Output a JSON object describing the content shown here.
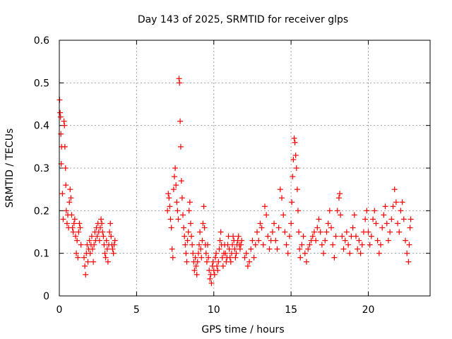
{
  "chart_data": {
    "type": "scatter",
    "title": "Day 143 of 2025, SRMTID for receiver glps",
    "xlabel": "GPS time / hours",
    "ylabel": "SRMTID / TECUs",
    "xlim": [
      0,
      24
    ],
    "ylim": [
      0,
      0.6
    ],
    "xticks": [
      0,
      5,
      10,
      15,
      20
    ],
    "yticks": [
      0,
      0.1,
      0.2,
      0.3,
      0.4,
      0.5,
      0.6
    ],
    "xtick_labels": [
      "0",
      "5",
      "10",
      "15",
      "20"
    ],
    "ytick_labels": [
      "0",
      "0.1",
      "0.2",
      "0.3",
      "0.4",
      "0.5",
      "0.6"
    ],
    "grid": true,
    "marker": "+",
    "color": "#ff0000",
    "series": [
      {
        "name": "SRMTID",
        "points": [
          [
            0.02,
            0.46
          ],
          [
            0.05,
            0.43
          ],
          [
            0.08,
            0.42
          ],
          [
            0.1,
            0.38
          ],
          [
            0.12,
            0.31
          ],
          [
            0.15,
            0.35
          ],
          [
            0.2,
            0.24
          ],
          [
            0.25,
            0.18
          ],
          [
            0.3,
            0.41
          ],
          [
            0.33,
            0.4
          ],
          [
            0.36,
            0.35
          ],
          [
            0.4,
            0.3
          ],
          [
            0.42,
            0.26
          ],
          [
            0.45,
            0.2
          ],
          [
            0.5,
            0.17
          ],
          [
            0.55,
            0.19
          ],
          [
            0.6,
            0.16
          ],
          [
            0.65,
            0.22
          ],
          [
            0.7,
            0.25
          ],
          [
            0.75,
            0.23
          ],
          [
            0.8,
            0.19
          ],
          [
            0.85,
            0.16
          ],
          [
            0.9,
            0.15
          ],
          [
            0.95,
            0.17
          ],
          [
            1.0,
            0.18
          ],
          [
            1.05,
            0.14
          ],
          [
            1.1,
            0.1
          ],
          [
            1.15,
            0.13
          ],
          [
            1.2,
            0.09
          ],
          [
            1.25,
            0.15
          ],
          [
            1.3,
            0.17
          ],
          [
            1.35,
            0.16
          ],
          [
            1.4,
            0.12
          ],
          [
            1.6,
            0.09
          ],
          [
            1.65,
            0.07
          ],
          [
            1.7,
            0.05
          ],
          [
            1.75,
            0.1
          ],
          [
            1.8,
            0.12
          ],
          [
            1.85,
            0.08
          ],
          [
            1.9,
            0.11
          ],
          [
            1.95,
            0.13
          ],
          [
            2.0,
            0.1
          ],
          [
            2.05,
            0.12
          ],
          [
            2.1,
            0.14
          ],
          [
            2.15,
            0.11
          ],
          [
            2.2,
            0.08
          ],
          [
            2.25,
            0.12
          ],
          [
            2.3,
            0.15
          ],
          [
            2.35,
            0.13
          ],
          [
            2.4,
            0.16
          ],
          [
            2.45,
            0.14
          ],
          [
            2.5,
            0.17
          ],
          [
            2.55,
            0.15
          ],
          [
            2.6,
            0.13
          ],
          [
            2.65,
            0.16
          ],
          [
            2.7,
            0.18
          ],
          [
            2.75,
            0.17
          ],
          [
            2.8,
            0.15
          ],
          [
            2.85,
            0.14
          ],
          [
            2.9,
            0.12
          ],
          [
            2.95,
            0.1
          ],
          [
            3.0,
            0.09
          ],
          [
            3.05,
            0.13
          ],
          [
            3.1,
            0.11
          ],
          [
            3.15,
            0.08
          ],
          [
            3.2,
            0.12
          ],
          [
            3.25,
            0.15
          ],
          [
            3.3,
            0.17
          ],
          [
            3.35,
            0.14
          ],
          [
            3.4,
            0.12
          ],
          [
            3.45,
            0.11
          ],
          [
            3.5,
            0.1
          ],
          [
            3.55,
            0.12
          ],
          [
            3.6,
            0.13
          ],
          [
            7.0,
            0.2
          ],
          [
            7.05,
            0.24
          ],
          [
            7.1,
            0.23
          ],
          [
            7.15,
            0.21
          ],
          [
            7.2,
            0.18
          ],
          [
            7.25,
            0.16
          ],
          [
            7.3,
            0.11
          ],
          [
            7.35,
            0.09
          ],
          [
            7.4,
            0.25
          ],
          [
            7.45,
            0.28
          ],
          [
            7.5,
            0.3
          ],
          [
            7.55,
            0.26
          ],
          [
            7.6,
            0.22
          ],
          [
            7.65,
            0.2
          ],
          [
            7.7,
            0.18
          ],
          [
            7.75,
            0.51
          ],
          [
            7.78,
            0.5
          ],
          [
            7.82,
            0.41
          ],
          [
            7.86,
            0.35
          ],
          [
            7.9,
            0.27
          ],
          [
            7.95,
            0.23
          ],
          [
            8.0,
            0.19
          ],
          [
            8.05,
            0.16
          ],
          [
            8.1,
            0.14
          ],
          [
            8.15,
            0.12
          ],
          [
            8.2,
            0.1
          ],
          [
            8.25,
            0.08
          ],
          [
            8.3,
            0.13
          ],
          [
            8.35,
            0.15
          ],
          [
            8.4,
            0.2
          ],
          [
            8.45,
            0.22
          ],
          [
            8.5,
            0.17
          ],
          [
            8.55,
            0.14
          ],
          [
            8.6,
            0.12
          ],
          [
            8.65,
            0.1
          ],
          [
            8.7,
            0.08
          ],
          [
            8.75,
            0.06
          ],
          [
            8.8,
            0.09
          ],
          [
            8.85,
            0.07
          ],
          [
            8.9,
            0.05
          ],
          [
            8.95,
            0.08
          ],
          [
            9.0,
            0.1
          ],
          [
            9.05,
            0.12
          ],
          [
            9.1,
            0.15
          ],
          [
            9.15,
            0.11
          ],
          [
            9.2,
            0.09
          ],
          [
            9.25,
            0.13
          ],
          [
            9.3,
            0.17
          ],
          [
            9.35,
            0.21
          ],
          [
            9.4,
            0.16
          ],
          [
            9.45,
            0.12
          ],
          [
            9.5,
            0.1
          ],
          [
            9.55,
            0.08
          ],
          [
            9.6,
            0.12
          ],
          [
            9.65,
            0.09
          ],
          [
            9.7,
            0.06
          ],
          [
            9.75,
            0.04
          ],
          [
            9.8,
            0.05
          ],
          [
            9.85,
            0.03
          ],
          [
            9.9,
            0.07
          ],
          [
            9.95,
            0.08
          ],
          [
            10.0,
            0.06
          ],
          [
            10.05,
            0.05
          ],
          [
            10.1,
            0.09
          ],
          [
            10.15,
            0.1
          ],
          [
            10.2,
            0.07
          ],
          [
            10.25,
            0.06
          ],
          [
            10.3,
            0.08
          ],
          [
            10.35,
            0.11
          ],
          [
            10.4,
            0.13
          ],
          [
            10.45,
            0.15
          ],
          [
            10.5,
            0.12
          ],
          [
            10.55,
            0.09
          ],
          [
            10.6,
            0.07
          ],
          [
            10.65,
            0.1
          ],
          [
            10.7,
            0.12
          ],
          [
            10.75,
            0.1
          ],
          [
            10.8,
            0.08
          ],
          [
            10.85,
            0.09
          ],
          [
            10.9,
            0.12
          ],
          [
            10.95,
            0.14
          ],
          [
            11.0,
            0.11
          ],
          [
            11.05,
            0.09
          ],
          [
            11.1,
            0.08
          ],
          [
            11.15,
            0.1
          ],
          [
            11.2,
            0.12
          ],
          [
            11.25,
            0.14
          ],
          [
            11.3,
            0.13
          ],
          [
            11.35,
            0.11
          ],
          [
            11.4,
            0.09
          ],
          [
            11.45,
            0.1
          ],
          [
            11.5,
            0.12
          ],
          [
            11.55,
            0.13
          ],
          [
            11.6,
            0.14
          ],
          [
            11.65,
            0.12
          ],
          [
            11.7,
            0.11
          ],
          [
            11.75,
            0.12
          ],
          [
            11.8,
            0.13
          ],
          [
            12.0,
            0.09
          ],
          [
            12.1,
            0.1
          ],
          [
            12.2,
            0.07
          ],
          [
            12.3,
            0.08
          ],
          [
            12.4,
            0.11
          ],
          [
            12.5,
            0.13
          ],
          [
            12.6,
            0.09
          ],
          [
            12.7,
            0.12
          ],
          [
            12.8,
            0.15
          ],
          [
            12.9,
            0.13
          ],
          [
            13.0,
            0.17
          ],
          [
            13.1,
            0.16
          ],
          [
            13.2,
            0.12
          ],
          [
            13.3,
            0.21
          ],
          [
            13.4,
            0.19
          ],
          [
            13.5,
            0.14
          ],
          [
            13.6,
            0.11
          ],
          [
            13.7,
            0.13
          ],
          [
            13.8,
            0.15
          ],
          [
            13.9,
            0.17
          ],
          [
            14.0,
            0.13
          ],
          [
            14.1,
            0.11
          ],
          [
            14.2,
            0.16
          ],
          [
            14.3,
            0.25
          ],
          [
            14.4,
            0.23
          ],
          [
            14.5,
            0.19
          ],
          [
            14.6,
            0.15
          ],
          [
            14.7,
            0.12
          ],
          [
            14.8,
            0.1
          ],
          [
            14.9,
            0.14
          ],
          [
            15.0,
            0.17
          ],
          [
            15.05,
            0.22
          ],
          [
            15.1,
            0.28
          ],
          [
            15.15,
            0.32
          ],
          [
            15.2,
            0.37
          ],
          [
            15.25,
            0.36
          ],
          [
            15.3,
            0.33
          ],
          [
            15.35,
            0.3
          ],
          [
            15.4,
            0.25
          ],
          [
            15.45,
            0.2
          ],
          [
            15.5,
            0.15
          ],
          [
            15.55,
            0.11
          ],
          [
            15.6,
            0.09
          ],
          [
            15.7,
            0.12
          ],
          [
            15.8,
            0.14
          ],
          [
            15.9,
            0.1
          ],
          [
            16.0,
            0.08
          ],
          [
            16.1,
            0.11
          ],
          [
            16.2,
            0.12
          ],
          [
            16.3,
            0.13
          ],
          [
            16.4,
            0.14
          ],
          [
            16.5,
            0.15
          ],
          [
            16.6,
            0.13
          ],
          [
            16.7,
            0.16
          ],
          [
            16.8,
            0.18
          ],
          [
            16.9,
            0.15
          ],
          [
            17.0,
            0.12
          ],
          [
            17.1,
            0.1
          ],
          [
            17.2,
            0.13
          ],
          [
            17.3,
            0.15
          ],
          [
            17.4,
            0.17
          ],
          [
            17.5,
            0.2
          ],
          [
            17.6,
            0.16
          ],
          [
            17.7,
            0.12
          ],
          [
            17.8,
            0.09
          ],
          [
            17.9,
            0.14
          ],
          [
            18.0,
            0.2
          ],
          [
            18.1,
            0.23
          ],
          [
            18.15,
            0.24
          ],
          [
            18.2,
            0.19
          ],
          [
            18.3,
            0.14
          ],
          [
            18.4,
            0.11
          ],
          [
            18.5,
            0.13
          ],
          [
            18.6,
            0.15
          ],
          [
            18.7,
            0.12
          ],
          [
            18.8,
            0.1
          ],
          [
            18.9,
            0.14
          ],
          [
            19.0,
            0.16
          ],
          [
            19.1,
            0.19
          ],
          [
            19.2,
            0.14
          ],
          [
            19.3,
            0.11
          ],
          [
            19.4,
            0.13
          ],
          [
            19.5,
            0.1
          ],
          [
            19.6,
            0.12
          ],
          [
            19.7,
            0.15
          ],
          [
            19.8,
            0.18
          ],
          [
            19.9,
            0.2
          ],
          [
            20.0,
            0.15
          ],
          [
            20.1,
            0.12
          ],
          [
            20.2,
            0.14
          ],
          [
            20.3,
            0.18
          ],
          [
            20.4,
            0.2
          ],
          [
            20.5,
            0.17
          ],
          [
            20.6,
            0.13
          ],
          [
            20.7,
            0.1
          ],
          [
            20.8,
            0.12
          ],
          [
            20.9,
            0.16
          ],
          [
            21.0,
            0.19
          ],
          [
            21.1,
            0.21
          ],
          [
            21.2,
            0.17
          ],
          [
            21.3,
            0.13
          ],
          [
            21.4,
            0.15
          ],
          [
            21.5,
            0.18
          ],
          [
            21.6,
            0.21
          ],
          [
            21.7,
            0.25
          ],
          [
            21.8,
            0.22
          ],
          [
            21.9,
            0.17
          ],
          [
            22.0,
            0.15
          ],
          [
            22.1,
            0.2
          ],
          [
            22.2,
            0.22
          ],
          [
            22.3,
            0.18
          ],
          [
            22.4,
            0.13
          ],
          [
            22.5,
            0.1
          ],
          [
            22.6,
            0.08
          ],
          [
            22.65,
            0.12
          ],
          [
            22.7,
            0.16
          ],
          [
            22.75,
            0.18
          ]
        ]
      }
    ]
  }
}
